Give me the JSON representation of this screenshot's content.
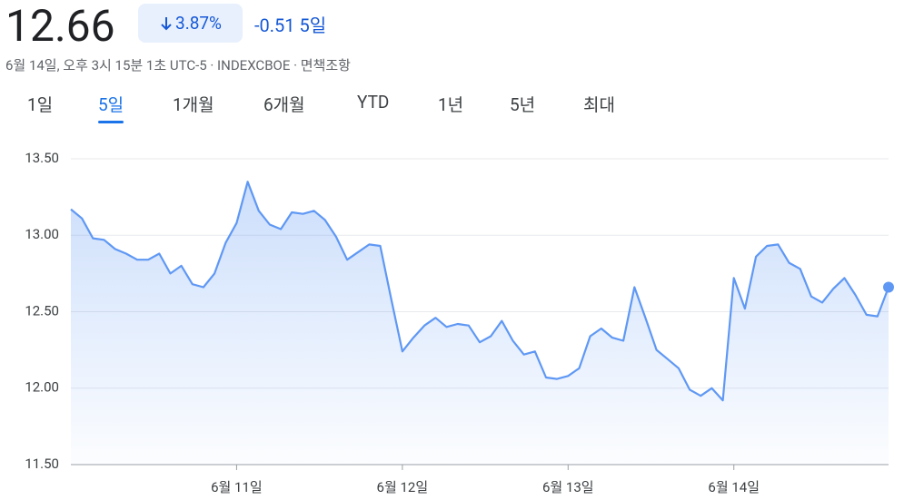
{
  "header": {
    "price": "12.66",
    "change_percent": "3.87%",
    "change": "-0.51",
    "period": "5일",
    "subtitle": "6월 14일, 오후 3시 15분 1초 UTC-5 · INDEXCBOE · 면책조항"
  },
  "tabs": {
    "items": [
      "1일",
      "5일",
      "1개월",
      "6개월",
      "YTD",
      "1년",
      "5년",
      "최대"
    ],
    "selected": 1
  },
  "chart_data": {
    "type": "line",
    "color": "#5f98f4",
    "grid": true,
    "categories": [
      null,
      null,
      null,
      null,
      null,
      null,
      null,
      null,
      null,
      null,
      null,
      null,
      null,
      null,
      null,
      "6월 11일",
      null,
      null,
      null,
      null,
      null,
      null,
      null,
      null,
      null,
      null,
      null,
      null,
      null,
      null,
      "6월 12일",
      null,
      null,
      null,
      null,
      null,
      null,
      null,
      null,
      null,
      null,
      null,
      null,
      null,
      null,
      "6월 13일",
      null,
      null,
      null,
      null,
      null,
      null,
      null,
      null,
      null,
      null,
      null,
      null,
      null,
      null,
      "6월 14일",
      null,
      null,
      null,
      null,
      null,
      null,
      null,
      null,
      null,
      null,
      null,
      null,
      null,
      null
    ],
    "values": [
      13.17,
      13.11,
      12.98,
      12.97,
      12.91,
      12.88,
      12.84,
      12.84,
      12.88,
      12.75,
      12.8,
      12.68,
      12.66,
      12.75,
      12.95,
      13.08,
      13.35,
      13.16,
      13.07,
      13.04,
      13.15,
      13.14,
      13.16,
      13.1,
      12.99,
      12.84,
      12.89,
      12.94,
      12.93,
      12.58,
      12.24,
      12.33,
      12.41,
      12.46,
      12.4,
      12.42,
      12.41,
      12.3,
      12.34,
      12.44,
      12.31,
      12.22,
      12.24,
      12.07,
      12.06,
      12.08,
      12.13,
      12.34,
      12.39,
      12.33,
      12.31,
      12.66,
      12.46,
      12.25,
      12.19,
      12.13,
      11.99,
      11.95,
      12.0,
      11.92,
      12.72,
      12.52,
      12.86,
      12.93,
      12.94,
      12.82,
      12.78,
      12.6,
      12.56,
      12.65,
      12.72,
      12.61,
      12.48,
      12.47,
      12.66
    ],
    "ylim": [
      11.5,
      13.5
    ],
    "yticks": [
      {
        "value": 11.5,
        "label": "11.50"
      },
      {
        "value": 12,
        "label": "12.00"
      },
      {
        "value": 12.5,
        "label": "12.50"
      },
      {
        "value": 13,
        "label": "13.00"
      },
      {
        "value": 13.5,
        "label": "13.50"
      }
    ]
  }
}
